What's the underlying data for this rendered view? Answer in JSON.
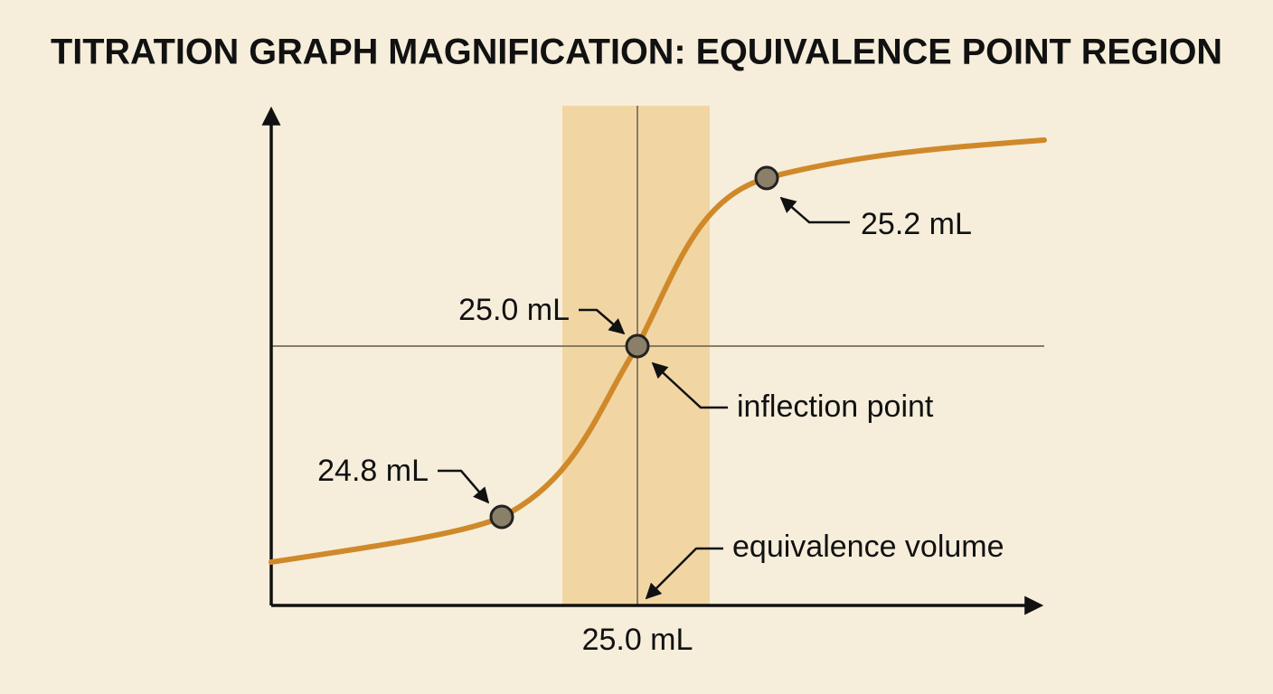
{
  "title": "TITRATION GRAPH MAGNIFICATION: EQUIVALENCE POINT REGION",
  "annotations": {
    "upper_point": "25.2 mL",
    "middle_point": "25.0 mL",
    "lower_point": "24.8 mL",
    "inflection": "inflection point",
    "equivalence": "equivalence volume",
    "x_axis_value": "25.0 mL"
  }
}
